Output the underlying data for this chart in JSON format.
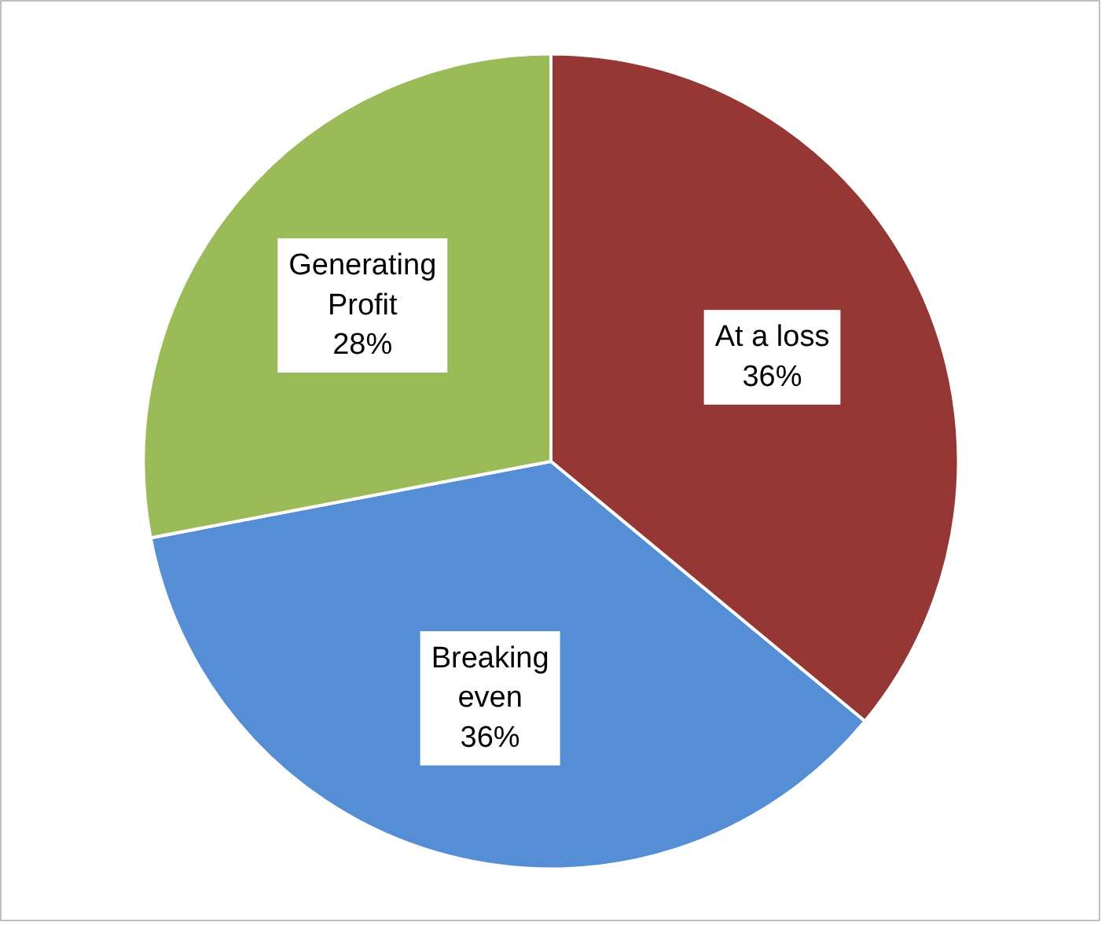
{
  "chart_data": {
    "type": "pie",
    "categories": [
      "At a loss",
      "Breaking even",
      "Generating Profit"
    ],
    "values": [
      36,
      36,
      28
    ],
    "value_labels": [
      "36%",
      "36%",
      "28%"
    ],
    "colors": [
      "#953735",
      "#558ed5",
      "#9bbb59"
    ]
  }
}
